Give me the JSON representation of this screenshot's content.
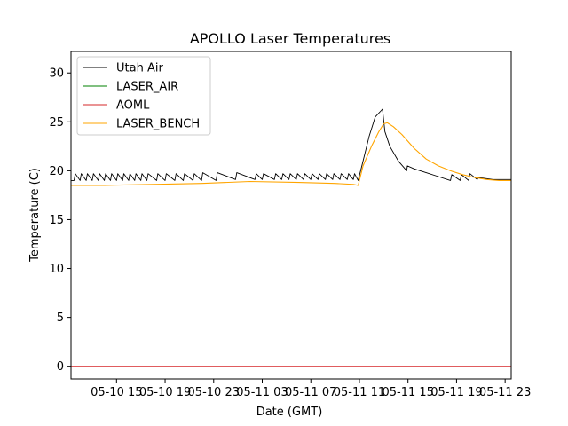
{
  "chart_data": {
    "type": "line",
    "title": "APOLLO Laser Temperatures",
    "xlabel": "Date (GMT)",
    "ylabel": "Temperature (C)",
    "xlim_hours": [
      11.25,
      47.5
    ],
    "ylim": [
      -1.3,
      32.2
    ],
    "grid": false,
    "legend_position": "top-left",
    "x_ticks": [
      {
        "hours": 15,
        "label": "05-10 15"
      },
      {
        "hours": 19,
        "label": "05-10 19"
      },
      {
        "hours": 23,
        "label": "05-10 23"
      },
      {
        "hours": 27,
        "label": "05-11 03"
      },
      {
        "hours": 31,
        "label": "05-11 07"
      },
      {
        "hours": 35,
        "label": "05-11 11"
      },
      {
        "hours": 39,
        "label": "05-11 15"
      },
      {
        "hours": 43,
        "label": "05-11 19"
      },
      {
        "hours": 47,
        "label": "05-11 23"
      }
    ],
    "y_ticks": [
      {
        "value": 0,
        "label": "0"
      },
      {
        "value": 5,
        "label": "5"
      },
      {
        "value": 10,
        "label": "10"
      },
      {
        "value": 15,
        "label": "15"
      },
      {
        "value": 20,
        "label": "20"
      },
      {
        "value": 25,
        "label": "25"
      },
      {
        "value": 30,
        "label": "30"
      }
    ],
    "series": [
      {
        "name": "Utah Air",
        "color": "#000000",
        "x": [
          11.25,
          11.5,
          11.6,
          12.0,
          12.1,
          12.5,
          12.6,
          13.0,
          13.1,
          13.5,
          13.6,
          14.0,
          14.1,
          14.5,
          14.6,
          15.0,
          15.1,
          15.5,
          15.6,
          16.0,
          16.1,
          16.5,
          16.6,
          17.0,
          17.1,
          17.5,
          17.6,
          18.3,
          18.4,
          19.0,
          19.1,
          19.8,
          19.9,
          20.5,
          20.6,
          21.3,
          21.4,
          22.0,
          22.1,
          23.2,
          23.3,
          24.8,
          24.9,
          26.4,
          26.5,
          27.0,
          27.1,
          28.0,
          28.1,
          28.6,
          28.7,
          29.2,
          29.3,
          29.8,
          29.9,
          30.4,
          30.5,
          31.0,
          31.1,
          31.6,
          31.7,
          32.2,
          32.3,
          32.8,
          32.9,
          33.4,
          33.5,
          34.0,
          34.1,
          34.5,
          34.6,
          34.9,
          35.3,
          35.8,
          36.3,
          36.9,
          37.1,
          37.5,
          38.2,
          38.9,
          38.95,
          39.5,
          40.5,
          41.5,
          42.5,
          42.6,
          43.3,
          43.4,
          44.0,
          44.1,
          44.7,
          44.8,
          46.0,
          47.5
        ],
        "values": [
          19.0,
          19.0,
          19.7,
          19.0,
          19.7,
          19.0,
          19.7,
          19.0,
          19.7,
          19.0,
          19.7,
          19.0,
          19.7,
          19.0,
          19.7,
          19.0,
          19.7,
          19.0,
          19.7,
          19.0,
          19.7,
          19.0,
          19.7,
          19.0,
          19.7,
          19.0,
          19.7,
          19.0,
          19.7,
          19.0,
          19.7,
          19.0,
          19.7,
          19.0,
          19.7,
          19.0,
          19.7,
          19.0,
          19.8,
          19.0,
          19.8,
          19.1,
          19.8,
          19.1,
          19.7,
          19.1,
          19.7,
          19.1,
          19.7,
          19.1,
          19.7,
          19.1,
          19.7,
          19.1,
          19.7,
          19.1,
          19.7,
          19.1,
          19.7,
          19.1,
          19.7,
          19.1,
          19.7,
          19.1,
          19.7,
          19.1,
          19.7,
          19.1,
          19.7,
          19.1,
          19.7,
          19.0,
          21.0,
          23.5,
          25.5,
          26.3,
          24.0,
          22.5,
          21.0,
          20.0,
          20.5,
          20.2,
          19.8,
          19.4,
          19.0,
          19.6,
          19.0,
          19.6,
          19.0,
          19.7,
          19.1,
          19.3,
          19.1,
          19.1
        ]
      },
      {
        "name": "LASER_AIR",
        "color": "#008000",
        "x": [],
        "values": []
      },
      {
        "name": "AOML",
        "color": "#d62728",
        "x": [
          11.25,
          47.5
        ],
        "values": [
          0.0,
          0.0
        ]
      },
      {
        "name": "LASER_BENCH",
        "color": "#ffa500",
        "x": [
          11.25,
          14.0,
          18.0,
          22.0,
          26.0,
          30.0,
          33.0,
          34.5,
          34.9,
          35.3,
          36.0,
          36.6,
          37.0,
          37.3,
          37.8,
          38.5,
          39.5,
          40.5,
          41.5,
          42.5,
          43.5,
          44.5,
          45.5,
          46.5,
          47.5
        ],
        "values": [
          18.5,
          18.5,
          18.6,
          18.7,
          18.9,
          18.8,
          18.7,
          18.6,
          18.5,
          20.5,
          22.5,
          24.0,
          24.8,
          24.9,
          24.5,
          23.7,
          22.3,
          21.2,
          20.5,
          20.0,
          19.6,
          19.3,
          19.1,
          19.0,
          19.0
        ]
      }
    ]
  }
}
